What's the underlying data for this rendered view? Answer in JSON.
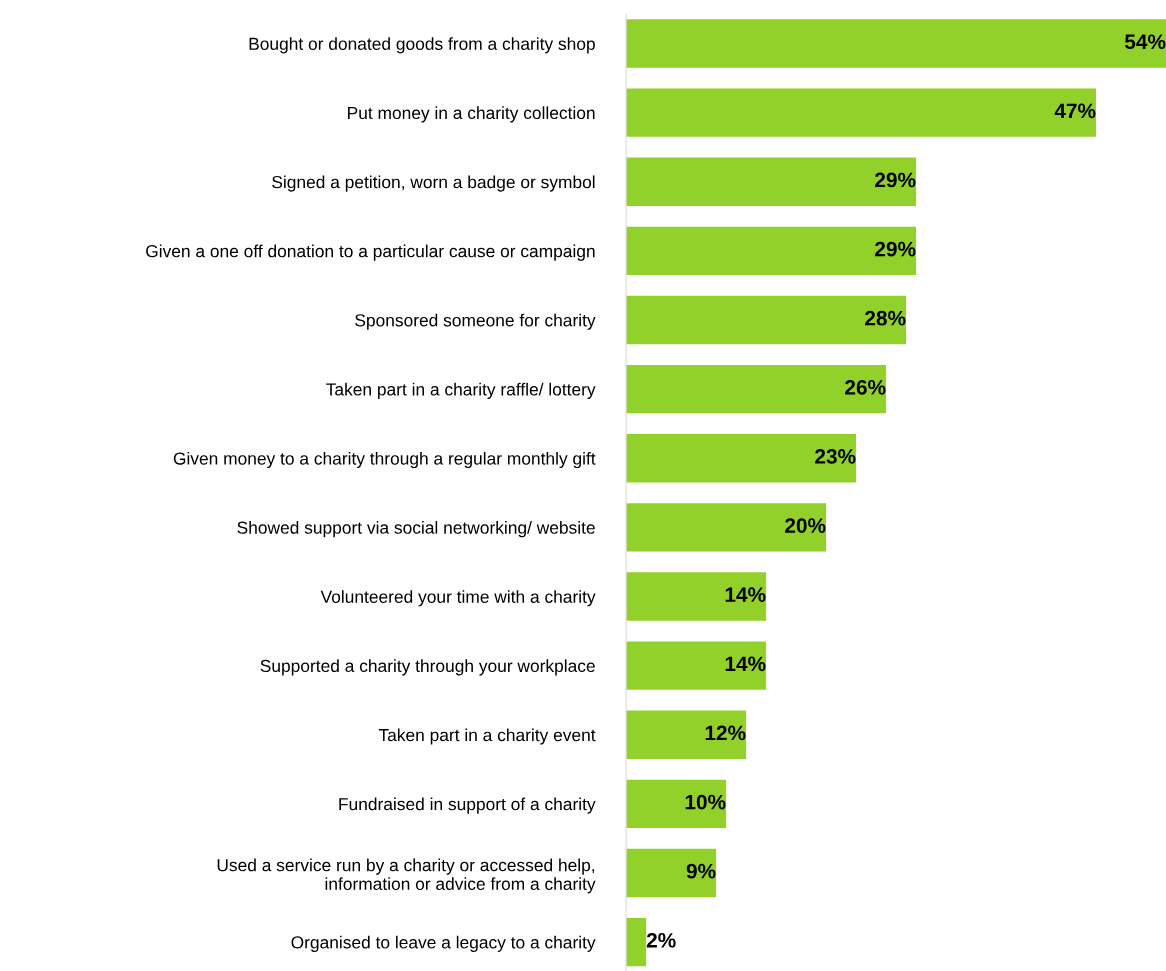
{
  "chart_data": {
    "type": "bar",
    "orientation": "horizontal",
    "categories": [
      "Bought or donated goods from a charity shop",
      "Put money in a charity collection",
      "Signed a petition, worn a badge or symbol",
      "Given a one off donation to a particular cause or campaign",
      "Sponsored someone for charity",
      "Taken part in a charity raffle/ lottery",
      "Given money to a charity through a regular monthly gift",
      "Showed support via social networking/ website",
      "Volunteered your time with a charity",
      "Supported a charity through your workplace",
      "Taken part in a charity event",
      "Fundraised in support of a charity",
      "Used a service run by a charity or accessed help,\ninformation or advice from a charity",
      "Organised to leave a legacy to a charity"
    ],
    "values": [
      54,
      47,
      29,
      29,
      28,
      26,
      23,
      20,
      14,
      14,
      12,
      10,
      9,
      2
    ],
    "value_labels": [
      "54%",
      "47%",
      "29%",
      "29%",
      "28%",
      "26%",
      "23%",
      "20%",
      "14%",
      "14%",
      "12%",
      "10%",
      "9%",
      "2%"
    ],
    "color": "#92d12a",
    "grid": false,
    "legend": false
  }
}
